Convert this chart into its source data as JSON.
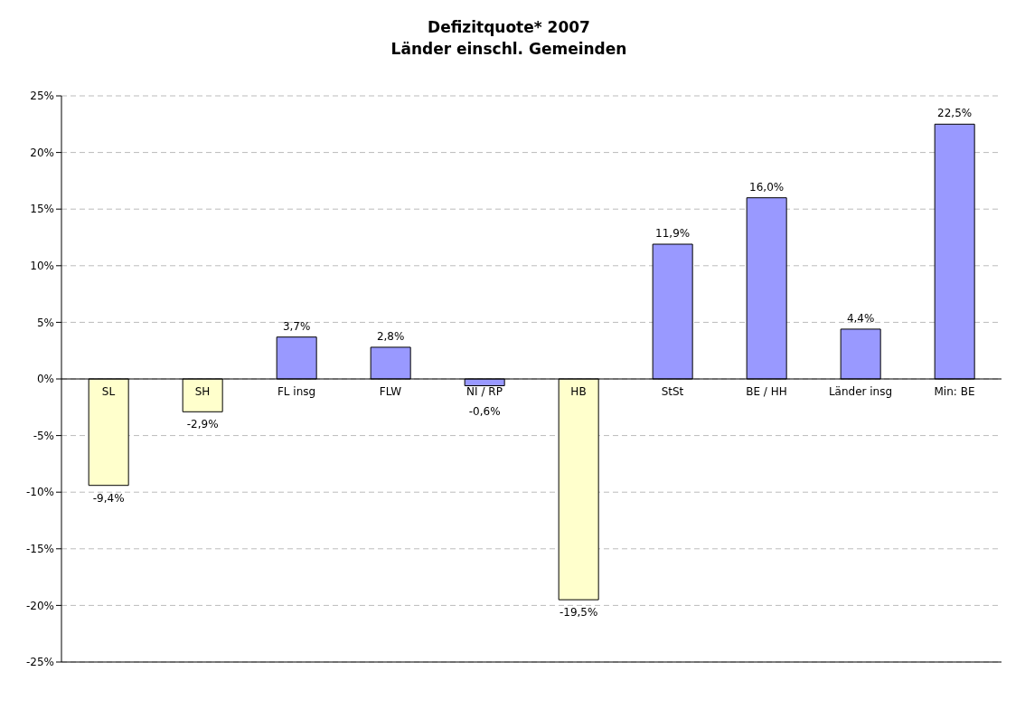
{
  "chart_data": {
    "type": "bar",
    "title": "Defizitquote* 2007",
    "subtitle": "Länder einschl. Gemeinden",
    "categories": [
      "SL",
      "SH",
      "FL insg",
      "FLW",
      "NI / RP",
      "HB",
      "StSt",
      "BE / HH",
      "Länder insg",
      "Min: BE"
    ],
    "values": [
      -9.4,
      -2.9,
      3.7,
      2.8,
      -0.6,
      -19.5,
      11.9,
      16.0,
      4.4,
      22.5
    ],
    "colors": [
      "#ffffcc",
      "#ffffcc",
      "#9999ff",
      "#9999ff",
      "#9999ff",
      "#ffffcc",
      "#9999ff",
      "#9999ff",
      "#9999ff",
      "#9999ff"
    ],
    "value_labels": [
      "-9,4%",
      "-2,9%",
      "3,7%",
      "2,8%",
      "-0,6%",
      "-19,5%",
      "11,9%",
      "16,0%",
      "4,4%",
      "22,5%"
    ],
    "ylim": [
      -25,
      25
    ],
    "yticks": [
      {
        "value": -25,
        "label": "-25%"
      },
      {
        "value": -20,
        "label": "-20%"
      },
      {
        "value": -15,
        "label": "-15%"
      },
      {
        "value": -10,
        "label": "-10%"
      },
      {
        "value": -5,
        "label": "-5%"
      },
      {
        "value": 0,
        "label": "0%"
      },
      {
        "value": 5,
        "label": "5%"
      },
      {
        "value": 10,
        "label": "10%"
      },
      {
        "value": 15,
        "label": "15%"
      },
      {
        "value": 20,
        "label": "20%"
      },
      {
        "value": 25,
        "label": "25%"
      }
    ],
    "grid": "y",
    "legend": false
  }
}
